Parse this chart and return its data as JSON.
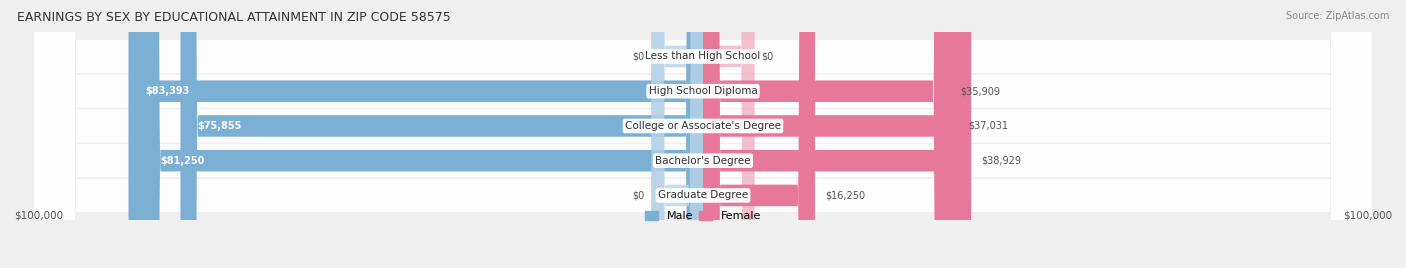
{
  "title": "EARNINGS BY SEX BY EDUCATIONAL ATTAINMENT IN ZIP CODE 58575",
  "source": "Source: ZipAtlas.com",
  "categories": [
    "Less than High School",
    "High School Diploma",
    "College or Associate's Degree",
    "Bachelor's Degree",
    "Graduate Degree"
  ],
  "male_values": [
    0,
    83393,
    75855,
    81250,
    0
  ],
  "female_values": [
    0,
    35909,
    37031,
    38929,
    16250
  ],
  "male_labels": [
    "$0",
    "$83,393",
    "$75,855",
    "$81,250",
    "$0"
  ],
  "female_labels": [
    "$0",
    "$35,909",
    "$37,031",
    "$38,929",
    "$16,250"
  ],
  "male_color": "#7cafd4",
  "female_color": "#e8789a",
  "male_color_light": "#b8d4e8",
  "female_color_light": "#f0b0c0",
  "max_value": 100000,
  "xlabel_left": "$100,000",
  "xlabel_right": "$100,000",
  "bar_height": 0.62,
  "background_color": "#efefef",
  "legend_male": "Male",
  "legend_female": "Female"
}
